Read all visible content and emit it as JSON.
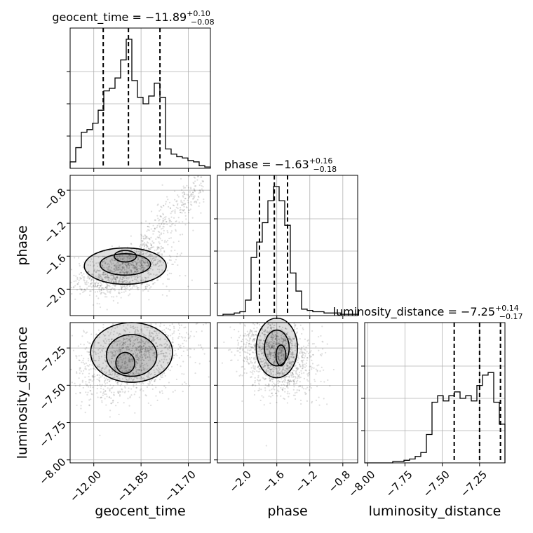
{
  "chart_data": {
    "type": "corner",
    "parameters": [
      "geocent_time",
      "phase",
      "luminosity_distance"
    ],
    "titles": [
      {
        "param": "geocent_time",
        "prefix": "geocent_time = ",
        "median": "−11.89",
        "plus": "+0.10",
        "minus": "−0.08"
      },
      {
        "param": "phase",
        "prefix": "phase = ",
        "median": "−1.63",
        "plus": "+0.16",
        "minus": "−0.18"
      },
      {
        "param": "luminosity_distance",
        "prefix": "luminosity_distance = ",
        "median": "−7.25",
        "plus": "+0.14",
        "minus": "−0.17"
      }
    ],
    "axis_labels": {
      "x": [
        "geocent_time",
        "phase",
        "luminosity_distance"
      ],
      "y": [
        "phase",
        "luminosity_distance"
      ]
    },
    "ranges": {
      "geocent_time": [
        -12.075,
        -11.63
      ],
      "phase": [
        -2.32,
        -0.62
      ],
      "luminosity_distance": [
        -8.02,
        -7.08
      ]
    },
    "ticks": {
      "geocent_time": {
        "values": [
          -12.0,
          -11.85,
          -11.7
        ],
        "labels": [
          "−12.00",
          "−11.85",
          "−11.70"
        ]
      },
      "phase": {
        "values": [
          -2.0,
          -1.6,
          -1.2,
          -0.8
        ],
        "labels": [
          "−2.0",
          "−1.6",
          "−1.2",
          "−0.8"
        ]
      },
      "luminosity_distance": {
        "values": [
          -8.0,
          -7.75,
          -7.5,
          -7.25
        ],
        "labels": [
          "−8.00",
          "−7.75",
          "−7.50",
          "−7.25"
        ]
      }
    },
    "quantiles": {
      "geocent_time": [
        -11.97,
        -11.89,
        -11.79
      ],
      "phase": [
        -1.81,
        -1.63,
        -1.47
      ],
      "luminosity_distance": [
        -7.42,
        -7.25,
        -7.11
      ]
    },
    "histograms": {
      "geocent_time": [
        0.05,
        0.16,
        0.28,
        0.3,
        0.35,
        0.45,
        0.6,
        0.62,
        0.7,
        0.84,
        1.0,
        0.68,
        0.55,
        0.5,
        0.56,
        0.66,
        0.55,
        0.15,
        0.11,
        0.09,
        0.08,
        0.06,
        0.05,
        0.02,
        0.01
      ],
      "phase": [
        0.0,
        0.01,
        0.01,
        0.02,
        0.03,
        0.12,
        0.45,
        0.57,
        0.72,
        0.89,
        1.0,
        0.89,
        0.7,
        0.33,
        0.19,
        0.05,
        0.04,
        0.03,
        0.03,
        0.02,
        0.02,
        0.02,
        0.01,
        0.01,
        0.01
      ],
      "luminosity_distance": [
        0.0,
        0.0,
        0.0,
        0.0,
        0.0,
        0.01,
        0.01,
        0.02,
        0.03,
        0.05,
        0.08,
        0.22,
        0.47,
        0.52,
        0.48,
        0.52,
        0.55,
        0.5,
        0.52,
        0.48,
        0.6,
        0.68,
        0.7,
        0.47,
        0.3
      ]
    },
    "grid": true,
    "legend": "none"
  }
}
